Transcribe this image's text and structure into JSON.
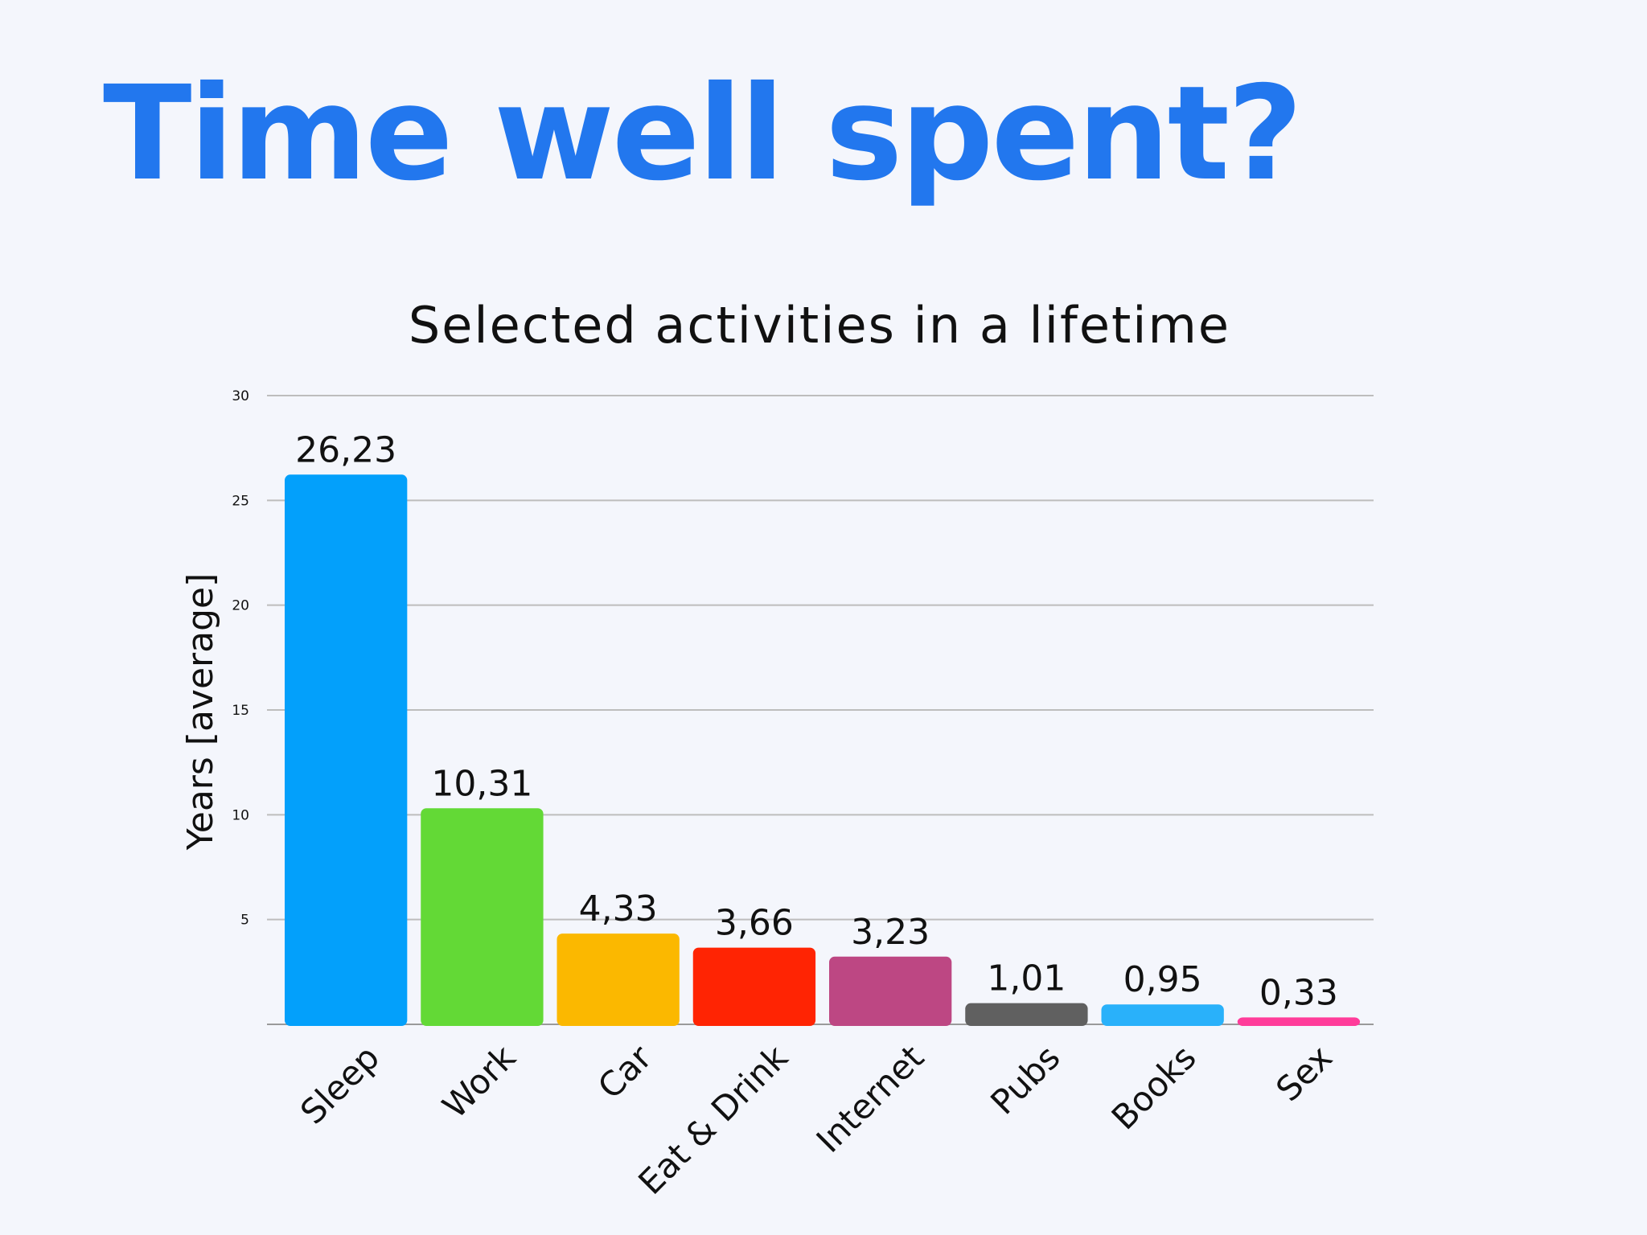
{
  "page": {
    "headline": "Time well spent?"
  },
  "chart_data": {
    "type": "bar",
    "title": "Selected activities in a lifetime",
    "xlabel": "",
    "ylabel": "Years [average]",
    "ylim": [
      0,
      30
    ],
    "yticks": [
      5,
      10,
      15,
      20,
      25,
      30
    ],
    "grid": true,
    "categories": [
      "Sleep",
      "Work",
      "Car",
      "Eat & Drink",
      "Internet",
      "Pubs",
      "Books",
      "Sex"
    ],
    "values": [
      26.23,
      10.31,
      4.33,
      3.66,
      3.23,
      1.01,
      0.95,
      0.33
    ],
    "value_labels": [
      "26,23",
      "10,31",
      "4,33",
      "3,66",
      "3,23",
      "1,01",
      "0,95",
      "0,33"
    ],
    "colors": [
      "#03a0fb",
      "#63d936",
      "#fbb800",
      "#ff2403",
      "#bd4783",
      "#606060",
      "#29b1fa",
      "#ff3c9a"
    ]
  }
}
